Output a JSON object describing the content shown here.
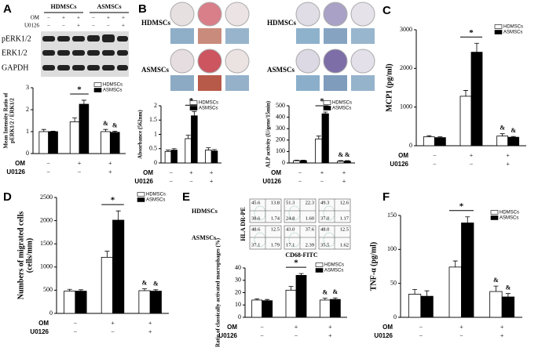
{
  "panel_labels": [
    "A",
    "B",
    "C",
    "D",
    "E",
    "F"
  ],
  "blot": {
    "groups": [
      "HDMSCs",
      "ASMSCs"
    ],
    "rows": [
      {
        "name": "OM",
        "marks": [
          "−",
          "+",
          "+",
          "−",
          "+",
          "+"
        ]
      },
      {
        "name": "U0126",
        "marks": [
          "−",
          "−",
          "+",
          "−",
          "−",
          "+"
        ]
      }
    ],
    "bands": [
      "pERK1/2",
      "ERK1/2",
      "GAPDH"
    ]
  },
  "staining": {
    "rows": [
      "HDMSCs",
      "ASMSCs"
    ]
  },
  "flow": {
    "rows": [
      "HDMSCs",
      "ASMSCs"
    ],
    "ylabel": "HLA DR-PE",
    "xlabel": "CD68-FITC",
    "quadrants": [
      [
        [
          "45.6",
          "13.8",
          "38.6",
          "1.74"
        ],
        [
          "51.3",
          "22.3",
          "24.8",
          "1.60"
        ],
        [
          "49.3",
          "12.6",
          "37.0",
          "1.17"
        ]
      ],
      [
        [
          "48.6",
          "12.5",
          "37.1",
          "1.79"
        ],
        [
          "43.0",
          "37.6",
          "17.1",
          "2.39"
        ],
        [
          "48.0",
          "12.5",
          "35.5",
          "1.62"
        ]
      ]
    ]
  },
  "chart_data": [
    {
      "type": "bar",
      "ylabel": [
        "Mean Intensity Ratio of",
        "pERK1/2 / ERK1/2"
      ],
      "ylim": [
        0,
        3
      ],
      "yticks": [
        0,
        1,
        2,
        3
      ],
      "legend": "upper right",
      "series": [
        {
          "name": "HDMSCs",
          "color": "#ffffff",
          "values": [
            1.0,
            1.45,
            1.0
          ],
          "errors": [
            0.1,
            0.17,
            0.1
          ],
          "marks": [
            null,
            null,
            "&"
          ]
        },
        {
          "name": "ASMSCs",
          "color": "#000000",
          "values": [
            1.0,
            2.25,
            0.97
          ],
          "errors": [
            0.02,
            0.18,
            0.05
          ],
          "marks": [
            null,
            null,
            "&"
          ]
        }
      ],
      "significance": {
        "label": "*",
        "category": 1
      },
      "conditions": [
        {
          "name": "OM",
          "marks": [
            "−",
            "+",
            "+"
          ]
        },
        {
          "name": "U0126",
          "marks": [
            "−",
            "−",
            "+"
          ]
        }
      ]
    },
    {
      "type": "bar",
      "ylabel": [
        "Absorbance (562nm)"
      ],
      "ylim": [
        0,
        2
      ],
      "yticks": [
        0,
        0.5,
        1,
        1.5,
        2
      ],
      "legend": "upper right",
      "series": [
        {
          "name": "HDMSCs",
          "color": "#ffffff",
          "values": [
            0.4,
            0.85,
            0.45
          ],
          "errors": [
            0.05,
            0.12,
            0.08
          ],
          "marks": [
            null,
            null,
            null
          ]
        },
        {
          "name": "ASMSCs",
          "color": "#000000",
          "values": [
            0.45,
            1.65,
            0.42
          ],
          "errors": [
            0.05,
            0.15,
            0.05
          ],
          "marks": [
            null,
            null,
            null
          ]
        }
      ],
      "significance": {
        "label": "*",
        "category": 1
      },
      "conditions": [
        {
          "name": "OM",
          "marks": [
            "−",
            "+",
            "+"
          ]
        },
        {
          "name": "U0126",
          "marks": [
            "−",
            "−",
            "+"
          ]
        }
      ]
    },
    {
      "type": "bar",
      "ylabel": [
        "ALP activity (U/gene/15min)"
      ],
      "ylim": [
        0,
        500
      ],
      "yticks": [
        0,
        100,
        200,
        300,
        400,
        500
      ],
      "legend": "upper right",
      "series": [
        {
          "name": "HDMSCs",
          "color": "#ffffff",
          "values": [
            20,
            210,
            15
          ],
          "errors": [
            5,
            25,
            5
          ],
          "marks": [
            null,
            null,
            "&"
          ]
        },
        {
          "name": "ASMSCs",
          "color": "#000000",
          "values": [
            20,
            430,
            15
          ],
          "errors": [
            5,
            15,
            5
          ],
          "marks": [
            null,
            null,
            "&"
          ]
        }
      ],
      "significance": {
        "label": "*",
        "category": 1
      },
      "conditions": [
        {
          "name": "OM",
          "marks": [
            "−",
            "+",
            "+"
          ]
        },
        {
          "name": "U0126",
          "marks": [
            "−",
            "−",
            "+"
          ]
        }
      ]
    },
    {
      "type": "bar",
      "ylabel": [
        "MCP1 (pg/ml)"
      ],
      "ylim": [
        0,
        3000
      ],
      "yticks": [
        0,
        1000,
        2000,
        3000
      ],
      "legend": "upper right",
      "series": [
        {
          "name": "HDMSCs",
          "color": "#ffffff",
          "values": [
            230,
            1280,
            250
          ],
          "errors": [
            30,
            150,
            60
          ],
          "marks": [
            null,
            null,
            "&"
          ]
        },
        {
          "name": "ASMSCs",
          "color": "#000000",
          "values": [
            210,
            2420,
            220
          ],
          "errors": [
            20,
            230,
            20
          ],
          "marks": [
            null,
            null,
            "&"
          ]
        }
      ],
      "significance": {
        "label": "*",
        "category": 1
      },
      "conditions": [
        {
          "name": "OM",
          "marks": [
            "−",
            "+",
            "+"
          ]
        },
        {
          "name": "U0126",
          "marks": [
            "−",
            "−",
            "+"
          ]
        }
      ]
    },
    {
      "type": "bar",
      "ylabel": [
        "Numbers of migrated cells",
        "(cells/mm)"
      ],
      "ylim": [
        0,
        2500
      ],
      "yticks": [
        0,
        500,
        1000,
        1500,
        2000,
        2500
      ],
      "legend": "upper right",
      "series": [
        {
          "name": "HDMSCs",
          "color": "#ffffff",
          "values": [
            480,
            1210,
            490
          ],
          "errors": [
            40,
            130,
            40
          ],
          "marks": [
            null,
            null,
            "&"
          ]
        },
        {
          "name": "ASMSCs",
          "color": "#000000",
          "values": [
            480,
            2010,
            480
          ],
          "errors": [
            30,
            200,
            30
          ],
          "marks": [
            null,
            null,
            "&"
          ]
        }
      ],
      "significance": {
        "label": "*",
        "category": 1
      },
      "conditions": [
        {
          "name": "OM",
          "marks": [
            "−",
            "+",
            "+"
          ]
        },
        {
          "name": "U0126",
          "marks": [
            "−",
            "−",
            "+"
          ]
        }
      ]
    },
    {
      "type": "bar",
      "ylabel": [
        "Ratio of classically activated macrophages (%)"
      ],
      "ylim": [
        0,
        40
      ],
      "yticks": [
        0,
        10,
        20,
        30,
        40
      ],
      "legend": "upper right",
      "series": [
        {
          "name": "HDMSCs",
          "color": "#ffffff",
          "values": [
            14,
            22,
            14
          ],
          "errors": [
            1,
            3,
            1.5
          ],
          "marks": [
            null,
            null,
            "&"
          ]
        },
        {
          "name": "ASMSCs",
          "color": "#000000",
          "values": [
            13.5,
            34,
            14.5
          ],
          "errors": [
            1,
            1.5,
            1.2
          ],
          "marks": [
            null,
            null,
            "&"
          ]
        }
      ],
      "significance": {
        "label": "*",
        "category": 1
      },
      "conditions": [
        {
          "name": "OM",
          "marks": [
            "−",
            "+",
            "+"
          ]
        },
        {
          "name": "U0126",
          "marks": [
            "−",
            "−",
            "+"
          ]
        }
      ]
    },
    {
      "type": "bar",
      "ylabel": [
        "TNF-α (pg/ml)"
      ],
      "ylim": [
        0,
        150
      ],
      "yticks": [
        0,
        50,
        100,
        150
      ],
      "legend": "upper right",
      "series": [
        {
          "name": "HDMSCs",
          "color": "#ffffff",
          "values": [
            34,
            74,
            38
          ],
          "errors": [
            7,
            9,
            8
          ],
          "marks": [
            null,
            null,
            "&"
          ]
        },
        {
          "name": "ASMSCs",
          "color": "#000000",
          "values": [
            31,
            139,
            30
          ],
          "errors": [
            8,
            9,
            5
          ],
          "marks": [
            null,
            null,
            "&"
          ]
        }
      ],
      "significance": {
        "label": "*",
        "category": 1
      },
      "conditions": [
        {
          "name": "OM",
          "marks": [
            "−",
            "+",
            "+"
          ]
        },
        {
          "name": "U0126",
          "marks": [
            "−",
            "−",
            "+"
          ]
        }
      ]
    }
  ]
}
